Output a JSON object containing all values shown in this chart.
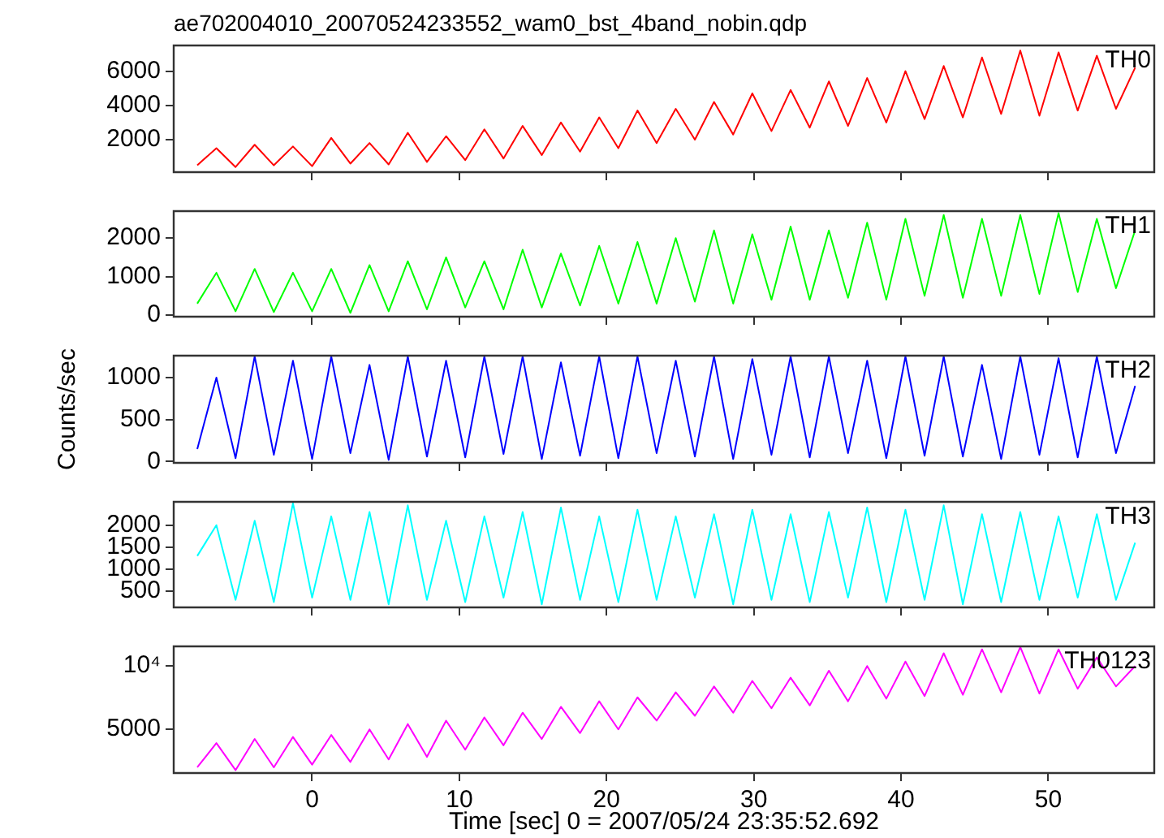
{
  "chart_data": [
    {
      "type": "line",
      "title": "ae702004010_20070524233552_wam0_bst_4band_nobin.qdp",
      "x": [
        -7.8,
        -6.5,
        -5.2,
        -3.9,
        -2.6,
        -1.3,
        0,
        1.3,
        2.6,
        3.9,
        5.2,
        6.5,
        7.8,
        9.1,
        10.4,
        11.7,
        13,
        14.3,
        15.6,
        16.9,
        18.2,
        19.5,
        20.8,
        22.1,
        23.4,
        24.7,
        26,
        27.3,
        28.6,
        29.9,
        31.2,
        32.5,
        33.8,
        35.1,
        36.4,
        37.7,
        39,
        40.3,
        41.6,
        42.9,
        44.2,
        45.5,
        46.8,
        48.1,
        49.4,
        50.7,
        52,
        53.3,
        54.6,
        55.9
      ],
      "series": [
        {
          "name": "TH0",
          "color": "#ff0000",
          "values": [
            500,
            1500,
            400,
            1700,
            500,
            1600,
            450,
            2100,
            600,
            1800,
            550,
            2400,
            700,
            2200,
            800,
            2600,
            900,
            2800,
            1100,
            3000,
            1300,
            3300,
            1500,
            3700,
            1800,
            3800,
            2000,
            4200,
            2300,
            4700,
            2500,
            4900,
            2700,
            5400,
            2800,
            5600,
            3000,
            6000,
            3200,
            6300,
            3300,
            6800,
            3500,
            7200,
            3400,
            7100,
            3700,
            6900,
            3800,
            6200
          ]
        }
      ],
      "xlim": [
        -9.4,
        57.2
      ],
      "xticks": [
        0,
        10,
        20,
        30,
        40,
        50
      ],
      "ylim": [
        100,
        7500
      ],
      "yticks": [
        2000,
        4000,
        6000
      ],
      "tick_labels": "y",
      "grid": false,
      "legend": false,
      "marker": "none"
    },
    {
      "type": "line",
      "x": [
        -7.8,
        -6.5,
        -5.2,
        -3.9,
        -2.6,
        -1.3,
        0,
        1.3,
        2.6,
        3.9,
        5.2,
        6.5,
        7.8,
        9.1,
        10.4,
        11.7,
        13,
        14.3,
        15.6,
        16.9,
        18.2,
        19.5,
        20.8,
        22.1,
        23.4,
        24.7,
        26,
        27.3,
        28.6,
        29.9,
        31.2,
        32.5,
        33.8,
        35.1,
        36.4,
        37.7,
        39,
        40.3,
        41.6,
        42.9,
        44.2,
        45.5,
        46.8,
        48.1,
        49.4,
        50.7,
        52,
        53.3,
        54.6,
        55.9
      ],
      "series": [
        {
          "name": "TH1",
          "color": "#00ff00",
          "values": [
            300,
            1100,
            100,
            1200,
            80,
            1100,
            100,
            1200,
            60,
            1300,
            100,
            1400,
            150,
            1500,
            200,
            1400,
            150,
            1700,
            200,
            1600,
            250,
            1800,
            300,
            1900,
            300,
            2000,
            350,
            2200,
            300,
            2100,
            400,
            2300,
            400,
            2200,
            450,
            2400,
            400,
            2500,
            500,
            2600,
            450,
            2500,
            500,
            2600,
            550,
            2650,
            600,
            2500,
            700,
            2200
          ]
        }
      ],
      "xlim": [
        -9.4,
        57.2
      ],
      "xticks": [
        0,
        10,
        20,
        30,
        40,
        50
      ],
      "ylim": [
        -40,
        2700
      ],
      "yticks": [
        0,
        1000,
        2000
      ],
      "tick_labels": "y",
      "grid": false,
      "legend": false,
      "marker": "none"
    },
    {
      "type": "line",
      "ylabel": "Counts/sec",
      "x": [
        -7.8,
        -6.5,
        -5.2,
        -3.9,
        -2.6,
        -1.3,
        0,
        1.3,
        2.6,
        3.9,
        5.2,
        6.5,
        7.8,
        9.1,
        10.4,
        11.7,
        13,
        14.3,
        15.6,
        16.9,
        18.2,
        19.5,
        20.8,
        22.1,
        23.4,
        24.7,
        26,
        27.3,
        28.6,
        29.9,
        31.2,
        32.5,
        33.8,
        35.1,
        36.4,
        37.7,
        39,
        40.3,
        41.6,
        42.9,
        44.2,
        45.5,
        46.8,
        48.1,
        49.4,
        50.7,
        52,
        53.3,
        54.6,
        55.9
      ],
      "series": [
        {
          "name": "TH2",
          "color": "#0000ff",
          "values": [
            150,
            1000,
            40,
            1250,
            80,
            1200,
            30,
            1250,
            100,
            1150,
            20,
            1250,
            60,
            1200,
            50,
            1250,
            90,
            1250,
            30,
            1180,
            70,
            1250,
            40,
            1250,
            100,
            1200,
            60,
            1250,
            30,
            1220,
            80,
            1250,
            50,
            1250,
            100,
            1200,
            40,
            1250,
            70,
            1250,
            60,
            1150,
            30,
            1250,
            80,
            1230,
            50,
            1250,
            100,
            900
          ]
        }
      ],
      "xlim": [
        -9.4,
        57.2
      ],
      "xticks": [
        0,
        10,
        20,
        30,
        40,
        50
      ],
      "ylim": [
        -15,
        1260
      ],
      "yticks": [
        0,
        500,
        1000
      ],
      "tick_labels": "y",
      "grid": false,
      "legend": false,
      "marker": "none"
    },
    {
      "type": "line",
      "x": [
        -7.8,
        -6.5,
        -5.2,
        -3.9,
        -2.6,
        -1.3,
        0,
        1.3,
        2.6,
        3.9,
        5.2,
        6.5,
        7.8,
        9.1,
        10.4,
        11.7,
        13,
        14.3,
        15.6,
        16.9,
        18.2,
        19.5,
        20.8,
        22.1,
        23.4,
        24.7,
        26,
        27.3,
        28.6,
        29.9,
        31.2,
        32.5,
        33.8,
        35.1,
        36.4,
        37.7,
        39,
        40.3,
        41.6,
        42.9,
        44.2,
        45.5,
        46.8,
        48.1,
        49.4,
        50.7,
        52,
        53.3,
        54.6,
        55.9
      ],
      "series": [
        {
          "name": "TH3",
          "color": "#00ffff",
          "values": [
            1300,
            2000,
            300,
            2100,
            250,
            2500,
            350,
            2200,
            300,
            2300,
            200,
            2450,
            300,
            2100,
            250,
            2200,
            350,
            2300,
            200,
            2400,
            300,
            2200,
            250,
            2350,
            300,
            2200,
            350,
            2250,
            200,
            2350,
            300,
            2250,
            250,
            2300,
            350,
            2400,
            250,
            2350,
            300,
            2450,
            200,
            2250,
            250,
            2300,
            300,
            2200,
            350,
            2250,
            300,
            1600
          ]
        }
      ],
      "xlim": [
        -9.4,
        57.2
      ],
      "xticks": [
        0,
        10,
        20,
        30,
        40,
        50
      ],
      "ylim": [
        130,
        2530
      ],
      "yticks": [
        500,
        1000,
        1500,
        2000
      ],
      "tick_labels": "y",
      "grid": false,
      "legend": false,
      "marker": "none"
    },
    {
      "type": "line",
      "xlabel": "Time [sec] 0 = 2007/05/24 23:35:52.692",
      "x": [
        -7.8,
        -6.5,
        -5.2,
        -3.9,
        -2.6,
        -1.3,
        0,
        1.3,
        2.6,
        3.9,
        5.2,
        6.5,
        7.8,
        9.1,
        10.4,
        11.7,
        13,
        14.3,
        15.6,
        16.9,
        18.2,
        19.5,
        20.8,
        22.1,
        23.4,
        24.7,
        26,
        27.3,
        28.6,
        29.9,
        31.2,
        32.5,
        33.8,
        35.1,
        36.4,
        37.7,
        39,
        40.3,
        41.6,
        42.9,
        44.2,
        45.5,
        46.8,
        48.1,
        49.4,
        50.7,
        52,
        53.3,
        54.6,
        55.9
      ],
      "series": [
        {
          "name": "TH0123",
          "color": "#ff00ff",
          "values": [
            3300,
            4300,
            3200,
            4500,
            3300,
            4600,
            3400,
            4700,
            3500,
            5000,
            3600,
            5300,
            3700,
            5500,
            4000,
            5700,
            4200,
            6000,
            4500,
            6400,
            4800,
            6800,
            5000,
            7100,
            5500,
            7500,
            5800,
            8000,
            6000,
            8500,
            6300,
            8800,
            6500,
            9500,
            6800,
            10000,
            7000,
            10500,
            7200,
            11500,
            7300,
            12000,
            7500,
            12300,
            7400,
            12000,
            7800,
            11000,
            8000,
            10000
          ]
        }
      ],
      "xlim": [
        -9.4,
        57.2
      ],
      "xticks": [
        0,
        10,
        20,
        30,
        40,
        50
      ],
      "ylim": [
        3100,
        12400
      ],
      "yticks": [
        5000,
        {
          "value": 10000,
          "label": "10⁴"
        }
      ],
      "log": "y",
      "grid": false,
      "legend": false,
      "marker": "none"
    }
  ]
}
